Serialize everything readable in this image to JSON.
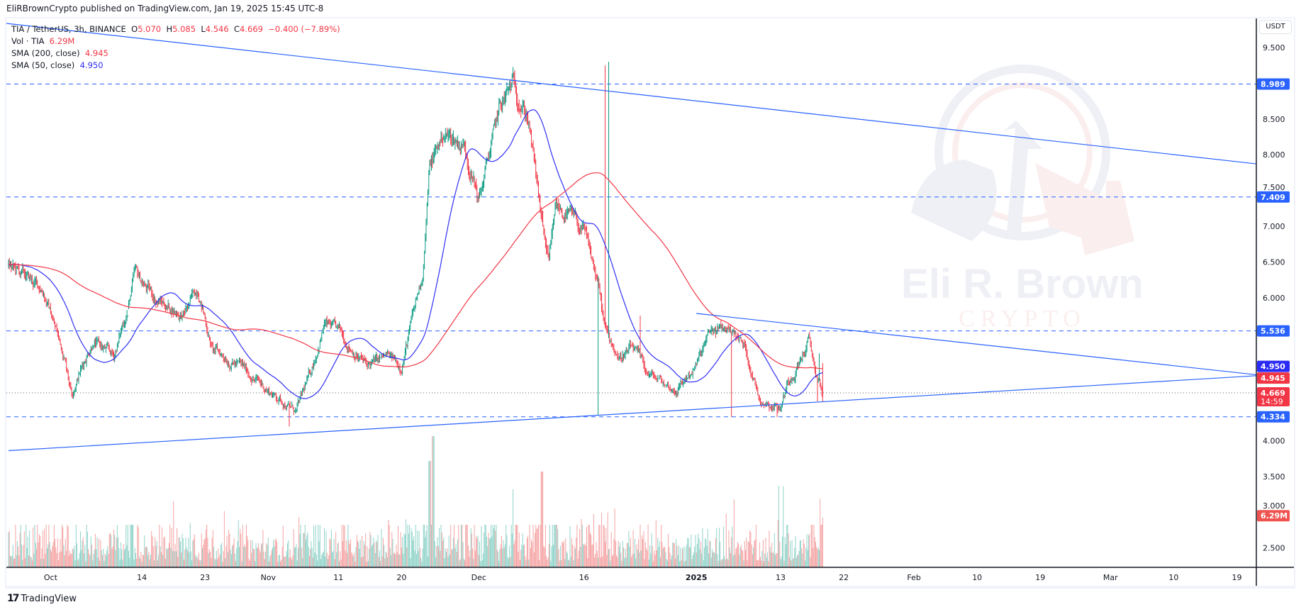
{
  "header": {
    "published": "EliRBrownCrypto published on TradingView.com, Jan 19, 2025 15:45 UTC-8"
  },
  "legend": {
    "symbol": "TIA / TetherUS, 3h, BINANCE",
    "open_label": "O",
    "open": "5.070",
    "high_label": "H",
    "high": "5.085",
    "low_label": "L",
    "low": "4.546",
    "close_label": "C",
    "close": "4.669",
    "change": "−0.400 (−7.89%)",
    "vol_label": "Vol · TIA",
    "vol": "6.29M",
    "sma200_label": "SMA (200, close)",
    "sma200": "4.945",
    "sma50_label": "SMA (50, close)",
    "sma50": "4.950"
  },
  "price_axis": {
    "currency": "USDT",
    "ticks": [
      "9.500",
      "8.500",
      "8.000",
      "7.500",
      "7.000",
      "6.500",
      "6.000",
      "4.000",
      "3.500",
      "3.000",
      "2.500"
    ],
    "badges": [
      {
        "text": "8.989",
        "value": 8.989,
        "color": "#2962ff"
      },
      {
        "text": "7.409",
        "value": 7.409,
        "color": "#2962ff"
      },
      {
        "text": "5.536",
        "value": 5.536,
        "color": "#2962ff"
      },
      {
        "text": "4.950",
        "value": 4.95,
        "color": "#2b2bf7"
      },
      {
        "text": "4.945",
        "value": 4.945,
        "color": "#f23645"
      },
      {
        "text": "4.669",
        "value": 4.669,
        "color": "#f23645",
        "sub": "14:59"
      },
      {
        "text": "4.334",
        "value": 4.334,
        "color": "#2962ff"
      },
      {
        "text": "6.29M",
        "value": 2.95,
        "color": "#ef5350"
      }
    ]
  },
  "time_axis": {
    "ticks": [
      {
        "label": "Oct",
        "date": "2024-10-01"
      },
      {
        "label": "14",
        "date": "2024-10-14"
      },
      {
        "label": "23",
        "date": "2024-10-23"
      },
      {
        "label": "Nov",
        "date": "2024-11-01"
      },
      {
        "label": "11",
        "date": "2024-11-11"
      },
      {
        "label": "20",
        "date": "2024-11-20"
      },
      {
        "label": "Dec",
        "date": "2024-12-01"
      },
      {
        "label": "16",
        "date": "2024-12-16"
      },
      {
        "label": "2025",
        "date": "2025-01-01"
      },
      {
        "label": "13",
        "date": "2025-01-13"
      },
      {
        "label": "22",
        "date": "2025-01-22"
      },
      {
        "label": "Feb",
        "date": "2025-02-01"
      },
      {
        "label": "10",
        "date": "2025-02-10"
      },
      {
        "label": "19",
        "date": "2025-02-19"
      },
      {
        "label": "Mar",
        "date": "2025-03-01"
      },
      {
        "label": "10",
        "date": "2025-03-10"
      },
      {
        "label": "19",
        "date": "2025-03-19"
      }
    ]
  },
  "watermark": {
    "name": "Eli R. Brown",
    "sub": "CRYPTO"
  },
  "footer": {
    "brand": "TradingView"
  },
  "colors": {
    "up": "#089981",
    "down": "#f23645",
    "sma200": "#f23645",
    "sma50": "#2f2ff5",
    "drawing": "#2962ff",
    "vol_up": "#8fd3c9",
    "vol_down": "#f5a3a3"
  },
  "chart_data": {
    "type": "candlestick",
    "interval": "3h",
    "ylim": [
      2.2,
      9.8
    ],
    "grid": false,
    "horizontal_levels": [
      8.989,
      7.409,
      5.536,
      4.334
    ],
    "last_price": 4.669,
    "trendlines": [
      {
        "from": {
          "date": "2024-09-19",
          "price": 9.9
        },
        "to": {
          "date": "2025-03-22",
          "price": 7.87
        }
      },
      {
        "from": {
          "date": "2024-09-25",
          "price": 3.86
        },
        "to": {
          "date": "2025-03-22",
          "price": 4.91
        }
      },
      {
        "from": {
          "date": "2025-01-01",
          "price": 5.78
        },
        "to": {
          "date": "2025-03-22",
          "price": 4.92
        }
      }
    ],
    "approx_close_path": [
      {
        "date": "2024-09-25",
        "price": 6.45
      },
      {
        "date": "2024-09-30",
        "price": 6.1
      },
      {
        "date": "2024-10-03",
        "price": 5.17
      },
      {
        "date": "2024-10-04",
        "price": 4.7
      },
      {
        "date": "2024-10-07",
        "price": 5.4
      },
      {
        "date": "2024-10-10",
        "price": 5.17
      },
      {
        "date": "2024-10-12",
        "price": 5.86
      },
      {
        "date": "2024-10-13",
        "price": 6.33
      },
      {
        "date": "2024-10-16",
        "price": 5.98
      },
      {
        "date": "2024-10-20",
        "price": 5.75
      },
      {
        "date": "2024-10-22",
        "price": 6.15
      },
      {
        "date": "2024-10-24",
        "price": 5.28
      },
      {
        "date": "2024-10-28",
        "price": 5.05
      },
      {
        "date": "2024-11-01",
        "price": 4.7
      },
      {
        "date": "2024-11-05",
        "price": 4.41
      },
      {
        "date": "2024-11-07",
        "price": 4.94
      },
      {
        "date": "2024-11-09",
        "price": 5.63
      },
      {
        "date": "2024-11-11",
        "price": 5.52
      },
      {
        "date": "2024-11-15",
        "price": 5.05
      },
      {
        "date": "2024-11-18",
        "price": 5.17
      },
      {
        "date": "2024-11-20",
        "price": 5.05
      },
      {
        "date": "2024-11-23",
        "price": 6.33
      },
      {
        "date": "2024-11-24",
        "price": 7.84
      },
      {
        "date": "2024-11-26",
        "price": 8.3
      },
      {
        "date": "2024-11-29",
        "price": 8.13
      },
      {
        "date": "2024-12-01",
        "price": 7.37
      },
      {
        "date": "2024-12-04",
        "price": 8.65
      },
      {
        "date": "2024-12-06",
        "price": 9.0
      },
      {
        "date": "2024-12-08",
        "price": 8.54
      },
      {
        "date": "2024-12-10",
        "price": 7.03
      },
      {
        "date": "2024-12-11",
        "price": 6.45
      },
      {
        "date": "2024-12-12",
        "price": 7.26
      },
      {
        "date": "2024-12-14",
        "price": 7.14
      },
      {
        "date": "2024-12-16",
        "price": 6.9
      },
      {
        "date": "2024-12-18",
        "price": 6.2
      },
      {
        "date": "2024-12-19",
        "price": 5.52
      },
      {
        "date": "2024-12-21",
        "price": 5.17
      },
      {
        "date": "2024-12-23",
        "price": 5.28
      },
      {
        "date": "2024-12-25",
        "price": 4.94
      },
      {
        "date": "2024-12-29",
        "price": 4.7
      },
      {
        "date": "2025-01-01",
        "price": 5.05
      },
      {
        "date": "2025-01-03",
        "price": 5.52
      },
      {
        "date": "2025-01-06",
        "price": 5.57
      },
      {
        "date": "2025-01-08",
        "price": 5.28
      },
      {
        "date": "2025-01-10",
        "price": 4.59
      },
      {
        "date": "2025-01-13",
        "price": 4.47
      },
      {
        "date": "2025-01-14",
        "price": 4.82
      },
      {
        "date": "2025-01-16",
        "price": 5.17
      },
      {
        "date": "2025-01-17",
        "price": 5.4
      },
      {
        "date": "2025-01-18",
        "price": 4.94
      },
      {
        "date": "2025-01-19",
        "price": 4.67
      }
    ]
  }
}
